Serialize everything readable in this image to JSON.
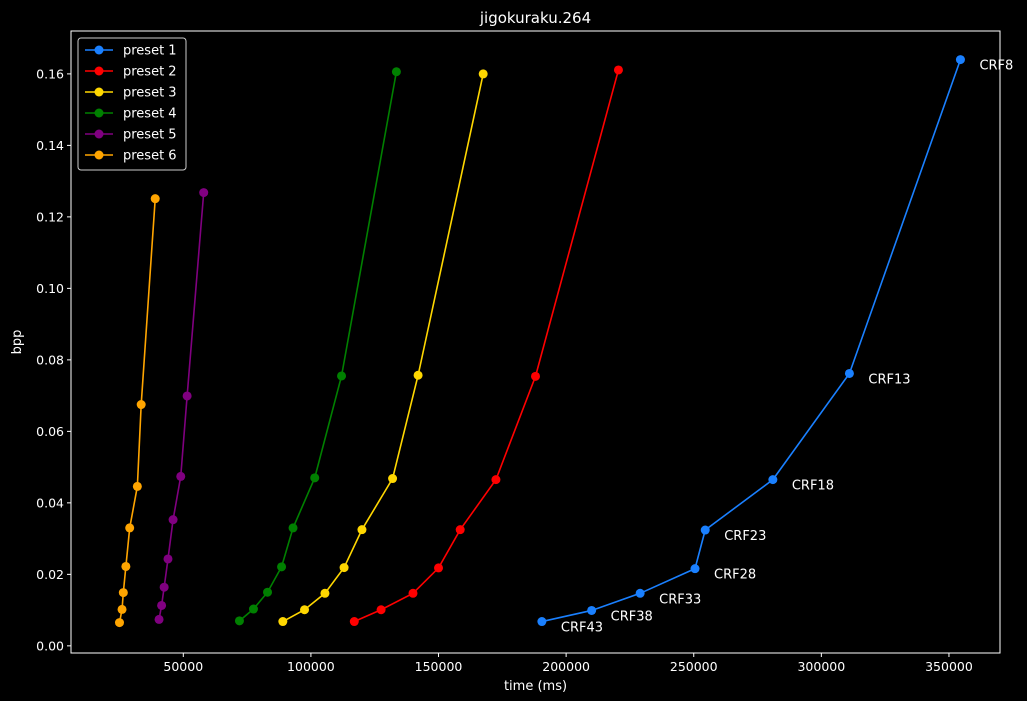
{
  "chart_data": {
    "type": "line",
    "title": "jigokuraku.264",
    "xlabel": "time (ms)",
    "ylabel": "bpp",
    "xlim": [
      6000,
      370000
    ],
    "ylim": [
      -0.002,
      0.172
    ],
    "xticks": [
      50000,
      100000,
      150000,
      200000,
      250000,
      300000,
      350000
    ],
    "xtick_labels": [
      "50000",
      "100000",
      "150000",
      "200000",
      "250000",
      "300000",
      "350000"
    ],
    "yticks": [
      0.0,
      0.02,
      0.04,
      0.06,
      0.08,
      0.1,
      0.12,
      0.14,
      0.16
    ],
    "ytick_labels": [
      "0.00",
      "0.02",
      "0.04",
      "0.06",
      "0.08",
      "0.10",
      "0.12",
      "0.14",
      "0.16"
    ],
    "legend_position": "top-left",
    "series": [
      {
        "name": "preset 1",
        "color": "#1a80ff",
        "x": [
          190500,
          210000,
          229000,
          250500,
          254500,
          281000,
          311000,
          354500
        ],
        "y": [
          0.0068,
          0.0099,
          0.0147,
          0.0216,
          0.0324,
          0.0465,
          0.0762,
          0.164
        ]
      },
      {
        "name": "preset 2",
        "color": "#ff0000",
        "x": [
          117000,
          127500,
          140000,
          150000,
          158500,
          172500,
          188000,
          220500
        ],
        "y": [
          0.0068,
          0.0101,
          0.0147,
          0.0218,
          0.0325,
          0.0465,
          0.0754,
          0.1611
        ]
      },
      {
        "name": "preset 3",
        "color": "#ffd700",
        "x": [
          89000,
          97500,
          105500,
          113000,
          120000,
          132000,
          142000,
          167500
        ],
        "y": [
          0.0068,
          0.0101,
          0.0147,
          0.0219,
          0.0325,
          0.0468,
          0.0757,
          0.16
        ]
      },
      {
        "name": "preset 4",
        "color": "#008000",
        "x": [
          72000,
          77500,
          83000,
          88500,
          93000,
          101500,
          112000,
          133500
        ],
        "y": [
          0.007,
          0.0103,
          0.015,
          0.0221,
          0.033,
          0.047,
          0.0755,
          0.1606
        ]
      },
      {
        "name": "preset 5",
        "color": "#800080",
        "x": [
          40500,
          41500,
          42500,
          44000,
          46000,
          49000,
          51500,
          58000
        ],
        "y": [
          0.0074,
          0.0113,
          0.0164,
          0.0243,
          0.0353,
          0.0474,
          0.0699,
          0.1268
        ]
      },
      {
        "name": "preset 6",
        "color": "#ffa500",
        "x": [
          25000,
          26000,
          26500,
          27500,
          29000,
          32000,
          33500,
          39000
        ],
        "y": [
          0.0065,
          0.0102,
          0.0149,
          0.0222,
          0.033,
          0.0446,
          0.0675,
          0.1251
        ]
      }
    ],
    "annotations": [
      {
        "text": "CRF8",
        "series": "preset 1",
        "point": 7
      },
      {
        "text": "CRF13",
        "series": "preset 1",
        "point": 6
      },
      {
        "text": "CRF18",
        "series": "preset 1",
        "point": 5
      },
      {
        "text": "CRF23",
        "series": "preset 1",
        "point": 4
      },
      {
        "text": "CRF28",
        "series": "preset 1",
        "point": 3
      },
      {
        "text": "CRF33",
        "series": "preset 1",
        "point": 2
      },
      {
        "text": "CRF38",
        "series": "preset 1",
        "point": 1
      },
      {
        "text": "CRF43",
        "series": "preset 1",
        "point": 0
      }
    ]
  }
}
